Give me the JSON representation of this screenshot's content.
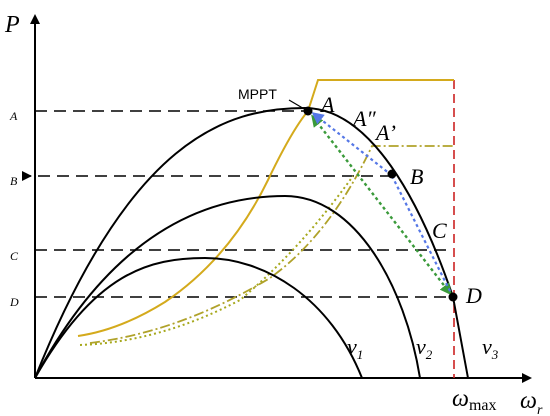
{
  "axes": {
    "y_label": "P",
    "x_label_main": "ω",
    "x_label_sub": "r"
  },
  "power_ticks": {
    "A": "A",
    "B": "B",
    "C": "C",
    "D": "D"
  },
  "omega_max": {
    "main": "ω",
    "sub": "max"
  },
  "mppt_label": "MPPT",
  "points": {
    "A": "A",
    "A2": "A″",
    "A1": "A’",
    "B": "B",
    "C": "C",
    "D": "D"
  },
  "wind_speeds": [
    {
      "main": "v",
      "sub": "1"
    },
    {
      "main": "v",
      "sub": "2"
    },
    {
      "main": "v",
      "sub": "3"
    }
  ],
  "colors": {
    "curve": "#000000",
    "mppt_curve": "#d4aa1c",
    "dotted_curve": "#a6a81c",
    "dashdot_curve": "#b0a22a",
    "omega_max_line": "#cc2222",
    "arrow_green": "#3a9a3a",
    "arrow_blue": "#5577e6",
    "dash_line": "#000000"
  }
}
